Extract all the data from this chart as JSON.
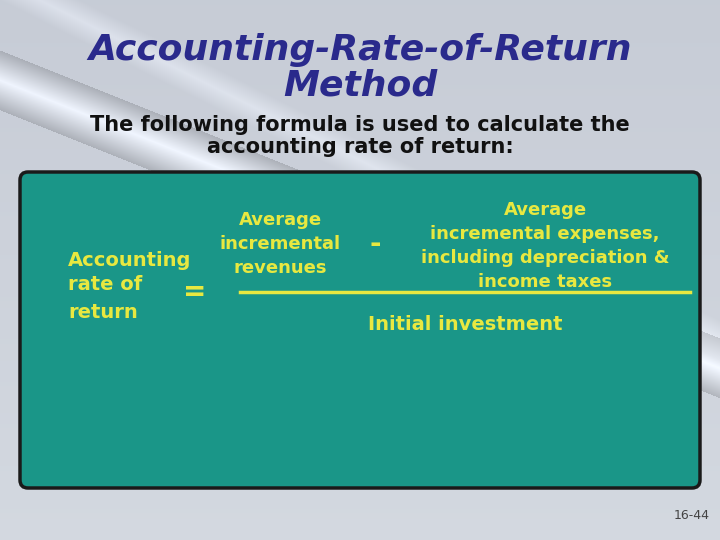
{
  "title_line1": "Accounting-Rate-of-Return",
  "title_line2": "Method",
  "title_color": "#2a2a8c",
  "subtitle_line1": "The following formula is used to calculate the",
  "subtitle_line2": "accounting rate of return:",
  "subtitle_color": "#111111",
  "bg_color": "#c8d0dc",
  "box_color": "#1a9688",
  "box_edge_color": "#1a1a1a",
  "box_text_color": "#e8e840",
  "left_label_lines": [
    "Accounting",
    "rate of",
    "return"
  ],
  "equals_sign": "=",
  "minus_sign": "-",
  "numerator_left_lines": [
    "Average",
    "incremental",
    "revenues"
  ],
  "numerator_right_lines": [
    "Average",
    "incremental expenses,",
    "including depreciation &",
    "income taxes"
  ],
  "denominator": "Initial investment",
  "page_number": "16-44",
  "page_number_color": "#444444"
}
